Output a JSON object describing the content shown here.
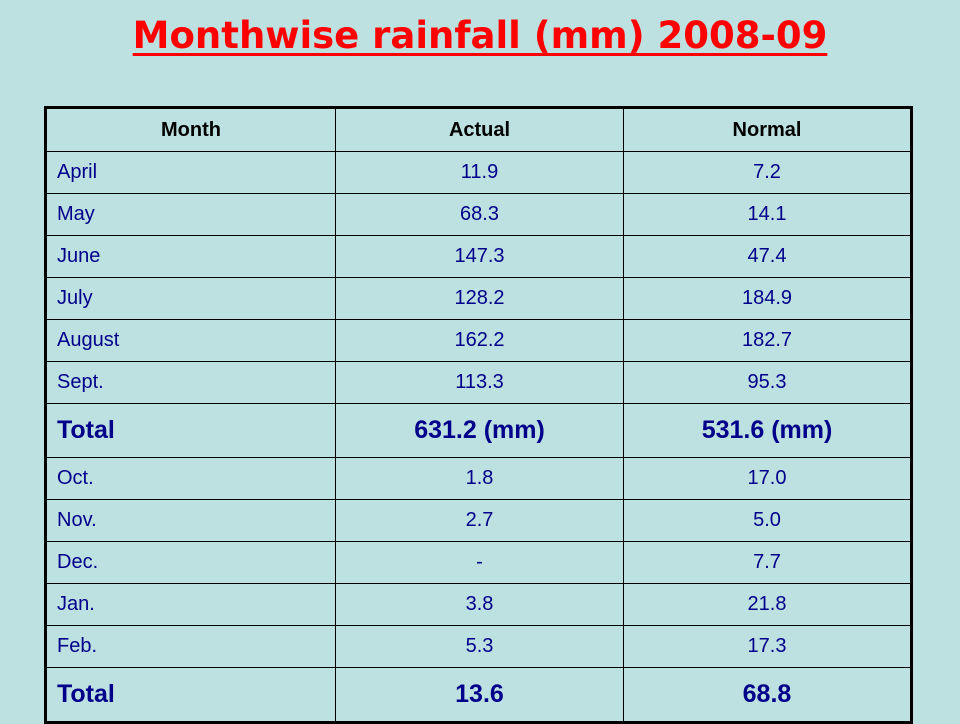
{
  "title": "Monthwise rainfall (mm) 2008-09",
  "table": {
    "headers": [
      "Month",
      "Actual",
      "Normal"
    ],
    "rows": [
      [
        "April",
        "11.9",
        "7.2"
      ],
      [
        "May",
        "68.3",
        "14.1"
      ],
      [
        "June",
        "147.3",
        "47.4"
      ],
      [
        "July",
        "128.2",
        "184.9"
      ],
      [
        "August",
        "162.2",
        "182.7"
      ],
      [
        "Sept.",
        "113.3",
        "95.3"
      ],
      [
        "Total",
        "631.2 (mm)",
        "531.6 (mm)"
      ],
      [
        "Oct.",
        "1.8",
        "17.0"
      ],
      [
        "Nov.",
        "2.7",
        "5.0"
      ],
      [
        "Dec.",
        "-",
        "7.7"
      ],
      [
        "Jan.",
        "3.8",
        "21.8"
      ],
      [
        "Feb.",
        "5.3",
        "17.3"
      ],
      [
        "Total",
        "13.6",
        "68.8"
      ]
    ]
  }
}
